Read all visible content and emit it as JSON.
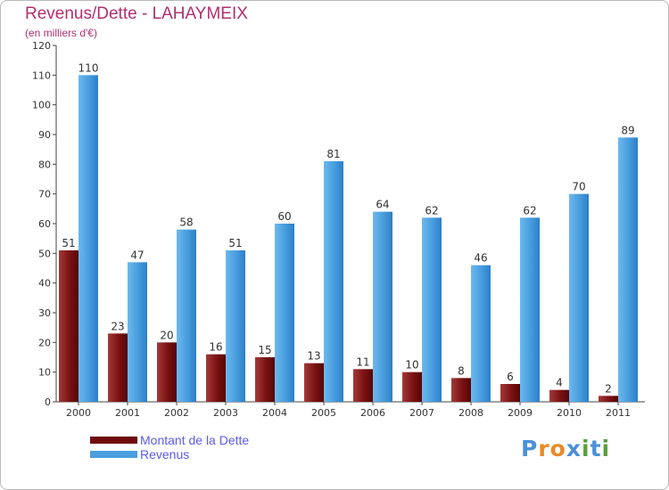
{
  "chart_data": {
    "type": "bar",
    "title": "Revenus/Dette - LAHAYMEIX",
    "subtitle": "(en milliers d'€)",
    "categories": [
      "2000",
      "2001",
      "2002",
      "2003",
      "2004",
      "2005",
      "2006",
      "2007",
      "2008",
      "2009",
      "2010",
      "2011"
    ],
    "series": [
      {
        "name": "Montant de la Dette",
        "color": "#7a1010",
        "values": [
          51,
          23,
          20,
          16,
          15,
          13,
          11,
          10,
          8,
          6,
          4,
          2
        ]
      },
      {
        "name": "Revenus",
        "color": "#4a9fdf",
        "values": [
          110,
          47,
          58,
          51,
          60,
          81,
          64,
          62,
          46,
          62,
          70,
          89
        ]
      }
    ],
    "ylim": [
      0,
      120
    ],
    "yticks": [
      0,
      10,
      20,
      30,
      40,
      50,
      60,
      70,
      80,
      90,
      100,
      110,
      120
    ],
    "grid": false,
    "legend": "bottom-left"
  },
  "branding": {
    "letters": [
      "P",
      "r",
      "o",
      "x",
      "i",
      "t",
      "i"
    ],
    "colors": [
      "#4a90d9",
      "#e8892a",
      "#e8892a",
      "#4a90d9",
      "#5aa040",
      "#4a90d9",
      "#5aa040"
    ]
  }
}
